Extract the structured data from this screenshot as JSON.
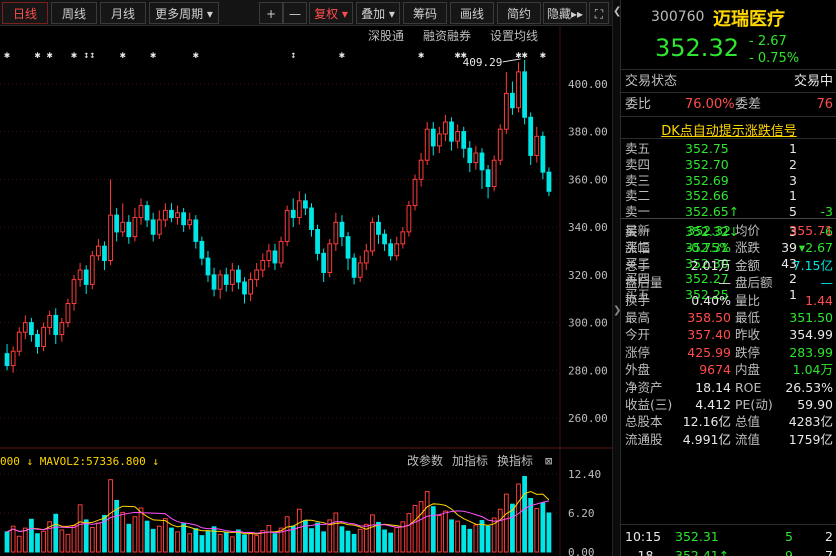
{
  "toolbar": {
    "tabs": [
      "日线",
      "周线",
      "月线",
      "更多周期"
    ],
    "buttons": [
      "+",
      "—",
      "复权",
      "叠加",
      "筹码",
      "画线",
      "简约",
      "隐藏"
    ],
    "more_arrow": "▸▸"
  },
  "chart_header": {
    "links": [
      "深股通",
      "融资融券",
      "设置均线"
    ]
  },
  "price_axis": [
    "400.00",
    "380.00",
    "360.00",
    "340.00",
    "320.00",
    "300.00",
    "280.00",
    "260.00"
  ],
  "high_marker": "409.29",
  "volume_panel": {
    "legend": "000 ↓ MAVOL2:57336.800 ↓",
    "buttons": [
      "改参数",
      "加指标",
      "换指标"
    ],
    "axis": [
      "12.40",
      "6.20",
      "0.00"
    ]
  },
  "chart_data": {
    "type": "candlestick",
    "ylim": [
      250,
      415
    ],
    "candles": [
      [
        287,
        282,
        291,
        280
      ],
      [
        282,
        288,
        290,
        279
      ],
      [
        288,
        296,
        298,
        286
      ],
      [
        296,
        300,
        303,
        293
      ],
      [
        300,
        295,
        302,
        292
      ],
      [
        295,
        290,
        297,
        287
      ],
      [
        290,
        298,
        300,
        288
      ],
      [
        298,
        303,
        305,
        295
      ],
      [
        303,
        295,
        306,
        291
      ],
      [
        295,
        300,
        302,
        292
      ],
      [
        300,
        308,
        310,
        298
      ],
      [
        308,
        318,
        320,
        305
      ],
      [
        318,
        322,
        325,
        315
      ],
      [
        322,
        316,
        324,
        312
      ],
      [
        316,
        328,
        330,
        314
      ],
      [
        328,
        332,
        335,
        326
      ],
      [
        332,
        326,
        334,
        322
      ],
      [
        326,
        345,
        360,
        324
      ],
      [
        345,
        338,
        348,
        334
      ],
      [
        338,
        342,
        350,
        336
      ],
      [
        342,
        336,
        345,
        333
      ],
      [
        336,
        344,
        348,
        334
      ],
      [
        344,
        349,
        352,
        341
      ],
      [
        349,
        343,
        351,
        340
      ],
      [
        343,
        337,
        346,
        334
      ],
      [
        337,
        343,
        347,
        335
      ],
      [
        343,
        347,
        350,
        340
      ],
      [
        347,
        344,
        350,
        342
      ],
      [
        344,
        346,
        349,
        341
      ],
      [
        346,
        341,
        348,
        338
      ],
      [
        341,
        343,
        346,
        339
      ],
      [
        343,
        334,
        345,
        331
      ],
      [
        334,
        327,
        336,
        324
      ],
      [
        327,
        320,
        330,
        317
      ],
      [
        320,
        314,
        323,
        311
      ],
      [
        314,
        320,
        322,
        310
      ],
      [
        320,
        316,
        323,
        313
      ],
      [
        316,
        322,
        325,
        313
      ],
      [
        322,
        317,
        324,
        314
      ],
      [
        317,
        312,
        319,
        308
      ],
      [
        312,
        318,
        321,
        309
      ],
      [
        318,
        322,
        325,
        315
      ],
      [
        322,
        326,
        329,
        319
      ],
      [
        326,
        330,
        333,
        323
      ],
      [
        330,
        325,
        333,
        322
      ],
      [
        325,
        334,
        336,
        323
      ],
      [
        334,
        347,
        349,
        332
      ],
      [
        347,
        344,
        352,
        340
      ],
      [
        344,
        351,
        355,
        341
      ],
      [
        351,
        348,
        354,
        345
      ],
      [
        348,
        339,
        350,
        336
      ],
      [
        339,
        329,
        341,
        326
      ],
      [
        329,
        321,
        331,
        317
      ],
      [
        321,
        333,
        335,
        319
      ],
      [
        333,
        342,
        346,
        330
      ],
      [
        342,
        336,
        345,
        332
      ],
      [
        336,
        327,
        338,
        322
      ],
      [
        327,
        319,
        329,
        316
      ],
      [
        319,
        325,
        328,
        317
      ],
      [
        325,
        330,
        333,
        322
      ],
      [
        330,
        342,
        344,
        328
      ],
      [
        342,
        337,
        345,
        333
      ],
      [
        337,
        333,
        339,
        330
      ],
      [
        333,
        328,
        335,
        326
      ],
      [
        328,
        333,
        336,
        326
      ],
      [
        333,
        338,
        340,
        331
      ],
      [
        338,
        349,
        351,
        336
      ],
      [
        349,
        360,
        362,
        347
      ],
      [
        360,
        368,
        371,
        357
      ],
      [
        368,
        381,
        384,
        366
      ],
      [
        381,
        374,
        384,
        370
      ],
      [
        374,
        379,
        382,
        371
      ],
      [
        379,
        384,
        387,
        376
      ],
      [
        384,
        376,
        386,
        372
      ],
      [
        376,
        380,
        383,
        373
      ],
      [
        380,
        373,
        382,
        369
      ],
      [
        373,
        367,
        376,
        363
      ],
      [
        367,
        371,
        374,
        364
      ],
      [
        371,
        364,
        373,
        356
      ],
      [
        364,
        357,
        366,
        352
      ],
      [
        357,
        368,
        370,
        355
      ],
      [
        368,
        381,
        383,
        366
      ],
      [
        381,
        396,
        405,
        379
      ],
      [
        396,
        390,
        401,
        387
      ],
      [
        390,
        405,
        409,
        388
      ],
      [
        405,
        386,
        410,
        383
      ],
      [
        386,
        370,
        388,
        366
      ],
      [
        370,
        378,
        382,
        367
      ],
      [
        378,
        363,
        380,
        360
      ],
      [
        363,
        355,
        365,
        353
      ]
    ],
    "volumes": [
      3.2,
      4.1,
      2.5,
      3.8,
      5.2,
      2.9,
      3.3,
      4.8,
      6.0,
      3.5,
      2.8,
      4.2,
      7.5,
      5.1,
      3.9,
      4.6,
      5.8,
      11.5,
      8.2,
      6.3,
      4.4,
      5.6,
      7.0,
      4.9,
      3.6,
      4.1,
      5.3,
      3.8,
      3.2,
      4.5,
      2.9,
      3.7,
      2.6,
      3.3,
      4.0,
      2.8,
      3.1,
      2.4,
      3.5,
      2.7,
      3.0,
      2.6,
      3.4,
      4.2,
      2.9,
      3.8,
      5.6,
      4.1,
      6.8,
      5.0,
      3.7,
      4.6,
      3.2,
      5.1,
      6.2,
      4.0,
      3.3,
      2.8,
      3.6,
      4.4,
      5.9,
      4.7,
      3.5,
      3.0,
      3.9,
      4.8,
      6.1,
      7.4,
      8.0,
      9.6,
      7.2,
      5.8,
      6.5,
      5.1,
      4.9,
      4.2,
      3.6,
      4.3,
      5.0,
      4.1,
      5.4,
      6.8,
      9.2,
      7.6,
      10.8,
      12.0,
      8.5,
      6.9,
      7.8,
      6.2
    ],
    "vol_ylim": [
      0,
      12.4
    ]
  },
  "stock": {
    "code": "300760",
    "name": "迈瑞医疗",
    "price": "352.32",
    "change": "- 2.67",
    "change_pct": "- 0.75%"
  },
  "status": {
    "label": "交易状态",
    "value": "交易中",
    "ratio_label": "委比",
    "ratio_value": "76.00%",
    "diff_label": "委差",
    "diff_value": "76"
  },
  "dk_signal": "DK点自动提示涨跌信号",
  "order_book": {
    "asks": [
      {
        "label": "卖五",
        "price": "352.75",
        "vol": "1",
        "delta": ""
      },
      {
        "label": "卖四",
        "price": "352.70",
        "vol": "2",
        "delta": ""
      },
      {
        "label": "卖三",
        "price": "352.69",
        "vol": "3",
        "delta": ""
      },
      {
        "label": "卖二",
        "price": "352.66",
        "vol": "1",
        "delta": ""
      },
      {
        "label": "卖一",
        "price": "352.65↑",
        "vol": "5",
        "delta": "-3"
      }
    ],
    "bids": [
      {
        "label": "买一",
        "price": "352.32↓",
        "vol": "3",
        "delta": "-6"
      },
      {
        "label": "买二",
        "price": "352.31",
        "vol": "39",
        "delta": ""
      },
      {
        "label": "买三",
        "price": "352.30",
        "vol": "43",
        "delta": ""
      },
      {
        "label": "买四",
        "price": "352.27",
        "vol": "2",
        "delta": ""
      },
      {
        "label": "买五",
        "price": "352.25",
        "vol": "1",
        "delta": ""
      }
    ]
  },
  "stats": [
    {
      "l1": "最新",
      "v1": "352.32",
      "c1": "green",
      "l2": "均价",
      "v2": "355.71",
      "c2": "red"
    },
    {
      "l1": "涨幅",
      "v1": "-0.75%",
      "c1": "green",
      "l2": "涨跌",
      "v2": "▾2.67",
      "c2": "green"
    },
    {
      "l1": "总手",
      "v1": "2.01万",
      "c1": "white",
      "l2": "金额",
      "v2": "7.15亿",
      "c2": "cyan"
    },
    {
      "l1": "盘后量",
      "v1": "—",
      "c1": "white",
      "l2": "盘后额",
      "v2": "—",
      "c2": "cyan"
    },
    {
      "l1": "换手",
      "v1": "0.40%",
      "c1": "white",
      "l2": "量比",
      "v2": "1.44",
      "c2": "red"
    },
    {
      "l1": "最高",
      "v1": "358.50",
      "c1": "red",
      "l2": "最低",
      "v2": "351.50",
      "c2": "green"
    },
    {
      "l1": "今开",
      "v1": "357.40",
      "c1": "red",
      "l2": "昨收",
      "v2": "354.99",
      "c2": "white"
    },
    {
      "l1": "涨停",
      "v1": "425.99",
      "c1": "red",
      "l2": "跌停",
      "v2": "283.99",
      "c2": "green"
    },
    {
      "l1": "外盘",
      "v1": "9674",
      "c1": "red",
      "l2": "内盘",
      "v2": "1.04万",
      "c2": "green"
    },
    {
      "l1": "净资产",
      "v1": "18.14",
      "c1": "white",
      "l2": "ROE",
      "v2": "26.53%",
      "c2": "white"
    },
    {
      "l1": "收益(三)",
      "v1": "4.412",
      "c1": "white",
      "l2": "PE(动)",
      "v2": "59.90",
      "c2": "white"
    },
    {
      "l1": "总股本",
      "v1": "12.16亿",
      "c1": "white",
      "l2": "总值",
      "v2": "4283亿",
      "c2": "white"
    },
    {
      "l1": "流通股",
      "v1": "4.991亿",
      "c1": "white",
      "l2": "流值",
      "v2": "1759亿",
      "c2": "white"
    }
  ],
  "ticks": [
    {
      "time": "10:15",
      "price": "352.31",
      "vol": "5",
      "count": "2"
    },
    {
      "time": "…18",
      "price": "352.41↑",
      "vol": "9",
      "count": "7"
    }
  ]
}
